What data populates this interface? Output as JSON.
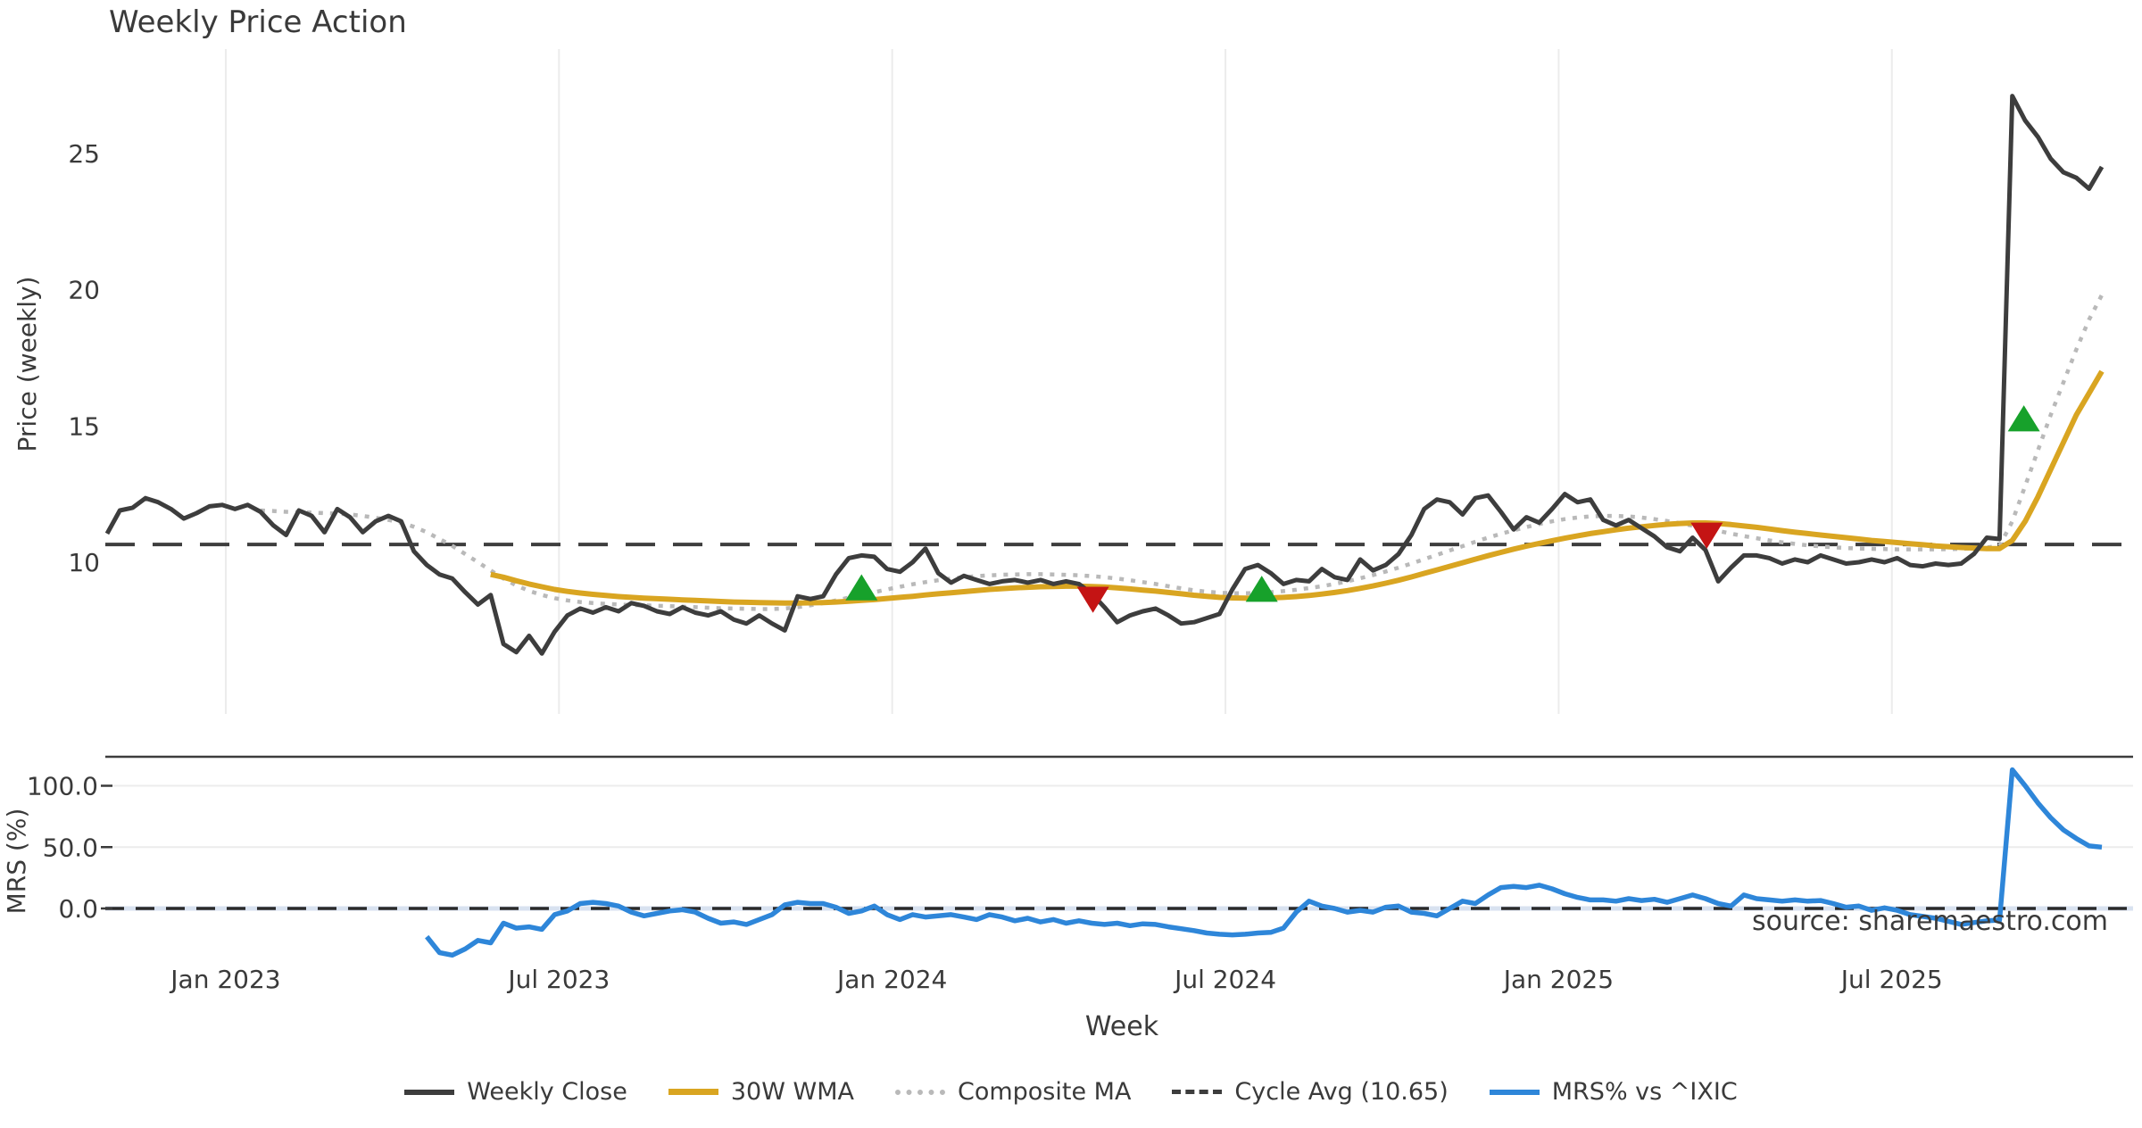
{
  "title": "Weekly Price Action",
  "source_note": "source: sharemaestro.com",
  "colors": {
    "weekly_close": "#3d3d3d",
    "wma30": "#d9a521",
    "composite_ma": "#b9b9b9",
    "cycle_avg": "#3d3d3d",
    "mrs": "#2e86d9",
    "buy_marker": "#17a12b",
    "sell_marker": "#c41414",
    "grid": "#ececec",
    "zero_band": "#d8e2f0",
    "panel_spine": "#3d3d3d",
    "text": "#3a3a3a",
    "source_text": "#8f8f8f"
  },
  "legend": [
    {
      "label": "Weekly Close",
      "color": "#3d3d3d",
      "style": "solid",
      "thickness": 6
    },
    {
      "label": "30W WMA",
      "color": "#d9a521",
      "style": "solid",
      "thickness": 7
    },
    {
      "label": "Composite MA",
      "color": "#b9b9b9",
      "style": "dotted",
      "thickness": 6
    },
    {
      "label": "Cycle Avg (10.65)",
      "color": "#3d3d3d",
      "style": "dashed",
      "thickness": 5
    },
    {
      "label": "MRS% vs ^IXIC",
      "color": "#2e86d9",
      "style": "solid",
      "thickness": 6
    }
  ],
  "chart_data": {
    "type": "line",
    "grid": "vertical-on-price-panel, horizontal-on-mrs-panel",
    "legend_position": "bottom-center",
    "x_axis": {
      "label": "Week",
      "unit": "weeks-from-start (first data point late Oct 2022, weekly cadence)",
      "tick_labels": [
        "Jan 2023",
        "Jul 2023",
        "Jan 2024",
        "Jul 2024",
        "Jan 2025",
        "Jul 2025"
      ],
      "tick_weeks": [
        9.28,
        35.34,
        61.4,
        87.46,
        113.52,
        139.58
      ],
      "xlim_weeks": [
        -0.2,
        158.5
      ]
    },
    "panels": [
      {
        "name": "price",
        "ylabel": "Price (weekly)",
        "ytick_values": [
          25,
          20,
          15,
          10
        ],
        "ytick_labels": [
          "25",
          "20",
          "15",
          "10"
        ],
        "ylim": [
          4.4,
          28.8
        ],
        "cycle_avg_value": 10.65,
        "series": [
          {
            "name": "Weekly Close",
            "color": "#3d3d3d",
            "style": "solid",
            "start_week": 0,
            "values": [
              11.05,
              11.9,
              12.0,
              12.35,
              12.2,
              11.95,
              11.6,
              11.8,
              12.05,
              12.1,
              11.95,
              12.1,
              11.85,
              11.35,
              11.0,
              11.9,
              11.7,
              11.1,
              11.95,
              11.65,
              11.1,
              11.5,
              11.7,
              11.5,
              10.4,
              9.9,
              9.55,
              9.4,
              8.9,
              8.45,
              8.8,
              7.0,
              6.7,
              7.3,
              6.65,
              7.45,
              8.05,
              8.3,
              8.15,
              8.35,
              8.2,
              8.5,
              8.4,
              8.2,
              8.1,
              8.35,
              8.15,
              8.05,
              8.2,
              7.9,
              7.75,
              8.05,
              7.75,
              7.5,
              8.75,
              8.65,
              8.75,
              9.55,
              10.15,
              10.25,
              10.2,
              9.75,
              9.65,
              10.0,
              10.5,
              9.6,
              9.25,
              9.5,
              9.35,
              9.2,
              9.3,
              9.35,
              9.25,
              9.35,
              9.2,
              9.3,
              9.2,
              8.85,
              8.35,
              7.8,
              8.05,
              8.2,
              8.3,
              8.05,
              7.75,
              7.8,
              7.95,
              8.1,
              9.0,
              9.75,
              9.9,
              9.6,
              9.2,
              9.35,
              9.3,
              9.75,
              9.45,
              9.35,
              10.1,
              9.7,
              9.9,
              10.3,
              11.0,
              11.95,
              12.3,
              12.2,
              11.75,
              12.35,
              12.45,
              11.85,
              11.2,
              11.65,
              11.45,
              11.95,
              12.5,
              12.2,
              12.3,
              11.55,
              11.35,
              11.55,
              11.25,
              10.95,
              10.55,
              10.4,
              10.9,
              10.45,
              9.3,
              9.8,
              10.25,
              10.25,
              10.15,
              9.95,
              10.1,
              10.0,
              10.25,
              10.1,
              9.95,
              10.0,
              10.1,
              10.0,
              10.15,
              9.9,
              9.85,
              9.95,
              9.9,
              9.95,
              10.3,
              10.9,
              10.85,
              27.1,
              26.2,
              25.6,
              24.8,
              24.3,
              24.1,
              23.7,
              24.5
            ]
          },
          {
            "name": "30W WMA",
            "color": "#d9a521",
            "style": "solid",
            "start_week": 30,
            "values": [
              9.55,
              9.45,
              9.32,
              9.2,
              9.1,
              9.0,
              8.93,
              8.87,
              8.82,
              8.78,
              8.74,
              8.71,
              8.68,
              8.66,
              8.64,
              8.62,
              8.6,
              8.58,
              8.56,
              8.54,
              8.53,
              8.52,
              8.51,
              8.5,
              8.5,
              8.51,
              8.52,
              8.54,
              8.57,
              8.6,
              8.63,
              8.67,
              8.71,
              8.75,
              8.8,
              8.84,
              8.88,
              8.92,
              8.96,
              9.0,
              9.03,
              9.06,
              9.08,
              9.1,
              9.11,
              9.12,
              9.12,
              9.11,
              9.09,
              9.06,
              9.02,
              8.98,
              8.94,
              8.89,
              8.84,
              8.79,
              8.75,
              8.71,
              8.69,
              8.68,
              8.68,
              8.69,
              8.71,
              8.74,
              8.78,
              8.83,
              8.89,
              8.96,
              9.04,
              9.13,
              9.23,
              9.34,
              9.46,
              9.59,
              9.72,
              9.85,
              9.98,
              10.11,
              10.24,
              10.36,
              10.48,
              10.59,
              10.69,
              10.79,
              10.88,
              10.97,
              11.05,
              11.12,
              11.19,
              11.25,
              11.3,
              11.35,
              11.39,
              11.42,
              11.44,
              11.44,
              11.42,
              11.38,
              11.33,
              11.28,
              11.22,
              11.16,
              11.1,
              11.05,
              11.0,
              10.95,
              10.9,
              10.85,
              10.8,
              10.76,
              10.72,
              10.68,
              10.64,
              10.6,
              10.57,
              10.54,
              10.52,
              10.5,
              10.5,
              10.8,
              11.5,
              12.4,
              13.4,
              14.4,
              15.4,
              16.2,
              17.0
            ]
          },
          {
            "name": "Composite MA",
            "color": "#b9b9b9",
            "style": "dotted",
            "start_week": 12,
            "values": [
              11.9,
              11.88,
              11.85,
              11.83,
              11.82,
              11.8,
              11.78,
              11.75,
              11.7,
              11.63,
              11.55,
              11.45,
              11.3,
              11.1,
              10.85,
              10.6,
              10.3,
              10.0,
              9.7,
              9.4,
              9.15,
              8.95,
              8.8,
              8.68,
              8.6,
              8.54,
              8.5,
              8.47,
              8.45,
              8.43,
              8.42,
              8.4,
              8.39,
              8.37,
              8.35,
              8.33,
              8.31,
              8.3,
              8.29,
              8.28,
              8.28,
              8.3,
              8.35,
              8.42,
              8.5,
              8.6,
              8.7,
              8.8,
              8.9,
              9.0,
              9.1,
              9.19,
              9.27,
              9.34,
              9.4,
              9.45,
              9.49,
              9.52,
              9.54,
              9.55,
              9.56,
              9.56,
              9.55,
              9.54,
              9.52,
              9.49,
              9.45,
              9.4,
              9.34,
              9.27,
              9.2,
              9.12,
              9.04,
              8.97,
              8.92,
              8.88,
              8.86,
              8.86,
              8.87,
              8.9,
              8.94,
              8.99,
              9.05,
              9.12,
              9.2,
              9.3,
              9.41,
              9.53,
              9.66,
              9.8,
              9.95,
              10.11,
              10.27,
              10.43,
              10.59,
              10.75,
              10.9,
              11.04,
              11.17,
              11.29,
              11.4,
              11.5,
              11.58,
              11.64,
              11.68,
              11.7,
              11.7,
              11.68,
              11.64,
              11.58,
              11.51,
              11.43,
              11.34,
              11.25,
              11.15,
              11.05,
              10.96,
              10.88,
              10.8,
              10.73,
              10.67,
              10.62,
              10.58,
              10.55,
              10.52,
              10.5,
              10.49,
              10.48,
              10.47,
              10.47,
              10.47,
              10.47,
              10.48,
              10.49,
              10.51,
              10.54,
              10.6,
              11.5,
              12.8,
              14.1,
              15.4,
              16.6,
              17.8,
              18.9,
              19.8
            ]
          }
        ],
        "markers": {
          "buy": [
            {
              "week": 59.0,
              "price": 9.0
            },
            {
              "week": 90.3,
              "price": 8.95
            },
            {
              "week": 149.9,
              "price": 15.2
            }
          ],
          "sell": [
            {
              "week": 77.1,
              "price": 8.7
            },
            {
              "week": 125.1,
              "price": 11.05
            }
          ]
        }
      },
      {
        "name": "relative_strength",
        "ylabel": "MRS (%)",
        "ytick_values": [
          100,
          50,
          0
        ],
        "ytick_labels": [
          "100.0",
          "50.0",
          "0.0"
        ],
        "ylim": [
          -41.5,
          123.6
        ],
        "zero_line_value": 0.0,
        "series": [
          {
            "name": "MRS% vs ^IXIC",
            "color": "#2e86d9",
            "style": "solid",
            "start_week": 25,
            "values": [
              -23,
              -36,
              -38,
              -33,
              -26,
              -28,
              -12,
              -16,
              -15,
              -17,
              -5,
              -2,
              4,
              5,
              4,
              2,
              -3,
              -6,
              -4,
              -2,
              -1,
              -3,
              -8,
              -12,
              -11,
              -13,
              -9,
              -5,
              3,
              5,
              4,
              4,
              1,
              -4,
              -2,
              2,
              -5,
              -9,
              -5,
              -7,
              -6,
              -5,
              -7,
              -9,
              -5,
              -7,
              -10,
              -8,
              -11,
              -9,
              -12,
              -10,
              -12,
              -13,
              -12,
              -14,
              -12.5,
              -13,
              -15,
              -16.5,
              -18,
              -20,
              -21,
              -21.5,
              -21,
              -20,
              -19.5,
              -16,
              -3,
              6,
              2,
              0,
              -3,
              -1.5,
              -3,
              1,
              2,
              -3,
              -4,
              -6,
              0,
              6,
              4,
              11,
              17,
              18,
              17,
              19,
              16,
              12,
              9,
              7,
              7,
              6,
              8,
              6.5,
              7.5,
              5,
              8,
              11,
              8,
              4,
              2,
              11,
              8,
              7,
              6,
              7,
              6,
              6.5,
              4,
              1,
              2,
              -1.5,
              0.5,
              -1.5,
              -5,
              -6.5,
              -8,
              -10.5,
              -13,
              -11.5,
              -10,
              -9.5,
              113,
              100,
              86,
              74,
              64,
              57,
              51,
              50
            ]
          }
        ]
      }
    ]
  }
}
